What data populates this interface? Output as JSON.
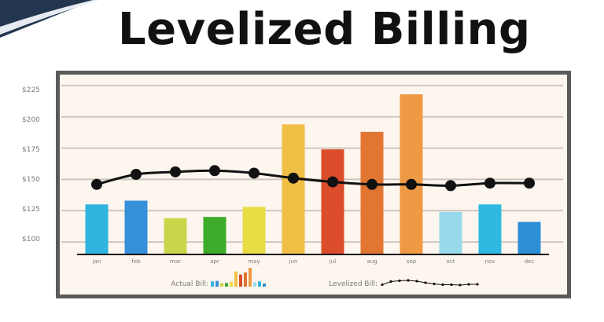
{
  "header": {
    "title": "Levelized Billing"
  },
  "colors": {
    "background": "#ffffff",
    "frame_border": "#5b5b5b",
    "plot_background": "#fdf6ee",
    "gridline": "#cfc6bf",
    "line": "#111111",
    "banner": "#23364f"
  },
  "chart_data": {
    "type": "bar",
    "title": "Levelized Billing",
    "xlabel": "",
    "ylabel": "",
    "ylim": [
      90,
      235
    ],
    "yticks": [
      100,
      125,
      150,
      175,
      200,
      225
    ],
    "ytick_labels": [
      "$100",
      "$125",
      "$150",
      "$175",
      "$200",
      "$225"
    ],
    "grid": true,
    "categories": [
      "jan",
      "feb",
      "mar",
      "apr",
      "may",
      "jun",
      "jul",
      "aug",
      "sep",
      "oct",
      "nov",
      "dec"
    ],
    "series": [
      {
        "name": "Actual Bill",
        "kind": "bar",
        "values": [
          130,
          133,
          119,
          120,
          128,
          194,
          174,
          188,
          218,
          124,
          130,
          116
        ],
        "colors": [
          "#2fb5de",
          "#3590d9",
          "#c9d64a",
          "#3fab2a",
          "#e8dc45",
          "#f0bf45",
          "#db4d2b",
          "#e07631",
          "#ee9a45",
          "#99d9ec",
          "#2fb8e0",
          "#2c8fd6"
        ]
      },
      {
        "name": "Levelized Bill",
        "kind": "line",
        "values": [
          146,
          154,
          156,
          157,
          155,
          151,
          148,
          146,
          146,
          145,
          147,
          147
        ]
      }
    ],
    "legend": {
      "position": "bottom",
      "entries": [
        {
          "label": "Actual Bill:"
        },
        {
          "label": "Levelized Bill:"
        }
      ]
    }
  }
}
